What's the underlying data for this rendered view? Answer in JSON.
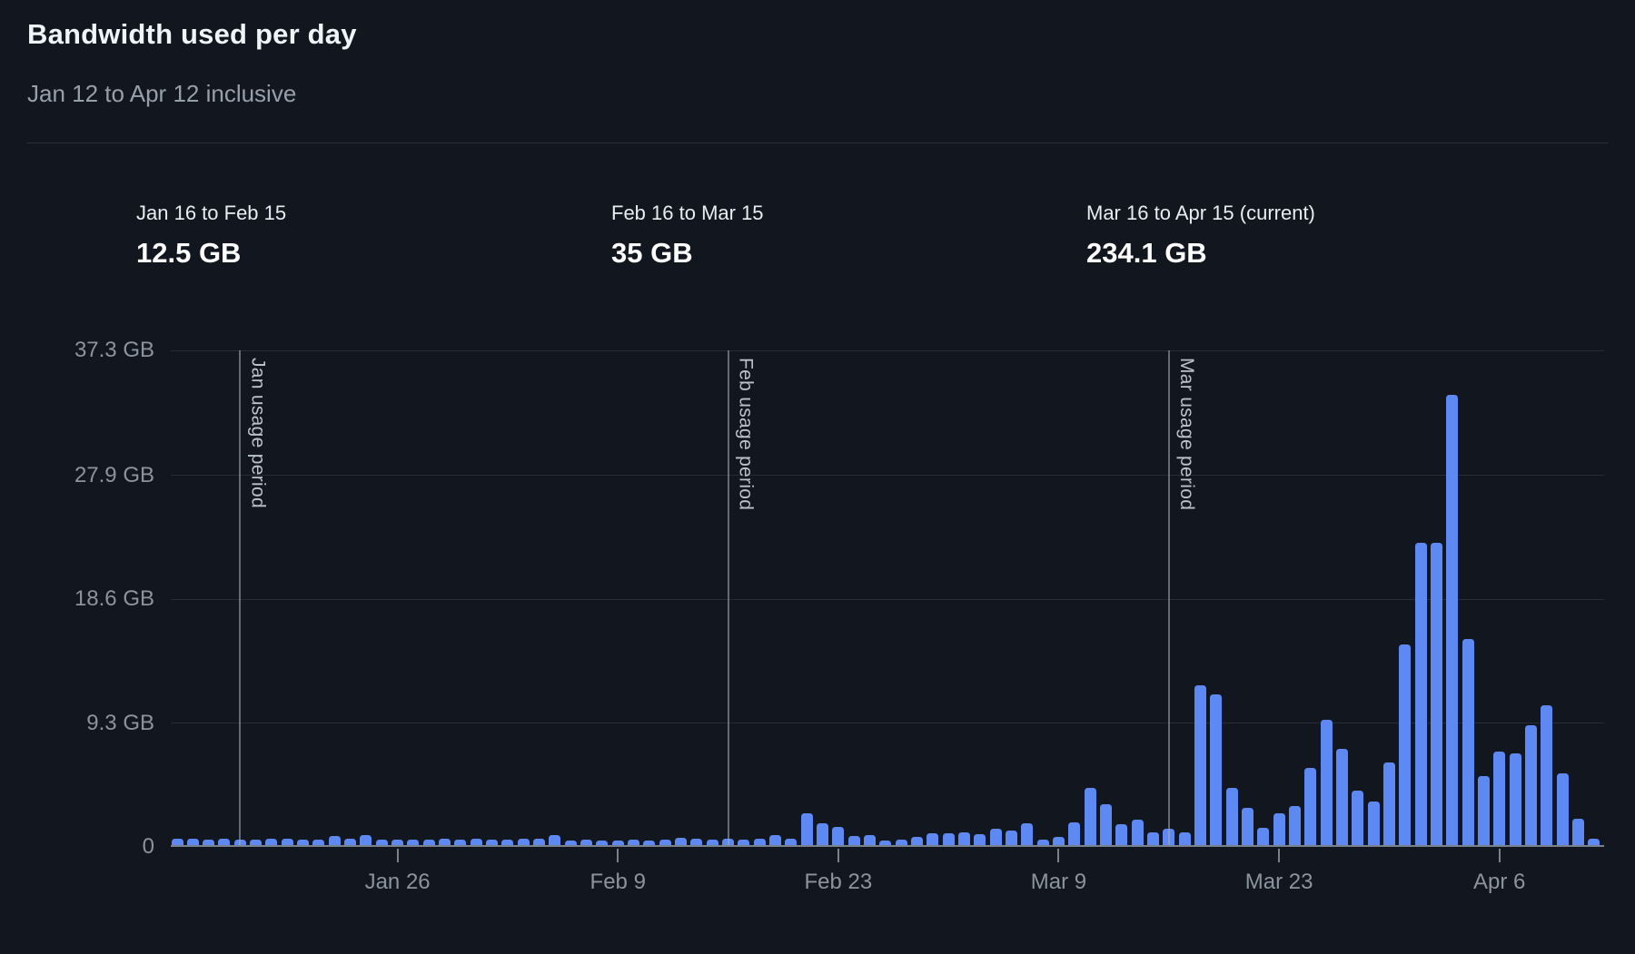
{
  "header": {
    "title": "Bandwidth used per day",
    "subtitle": "Jan 12 to Apr 12 inclusive"
  },
  "summary": [
    {
      "label": "Jan 16 to Feb 15",
      "value": "12.5 GB"
    },
    {
      "label": "Feb 16 to Mar 15",
      "value": "35 GB"
    },
    {
      "label": "Mar 16 to Apr 15 (current)",
      "value": "234.1 GB"
    }
  ],
  "colors": {
    "background": "#12171f",
    "bar": "#5e88f2",
    "grid": "#262d36",
    "axis_line": "#79828c",
    "tick_label": "#8b949e",
    "period_label": "#b9c1ca"
  },
  "chart_data": {
    "type": "bar",
    "title": "Bandwidth used per day",
    "xlabel": "",
    "ylabel": "",
    "unit": "GB",
    "ylim": [
      0,
      37.3
    ],
    "grid": true,
    "y_ticks": [
      {
        "label": "0",
        "value": 0
      },
      {
        "label": "9.3 GB",
        "value": 9.3
      },
      {
        "label": "18.6 GB",
        "value": 18.6
      },
      {
        "label": "27.9 GB",
        "value": 27.9
      },
      {
        "label": "37.3 GB",
        "value": 37.3
      }
    ],
    "x_ticks": [
      {
        "label": "Jan 26",
        "index": 14
      },
      {
        "label": "Feb 9",
        "index": 28
      },
      {
        "label": "Feb 23",
        "index": 42
      },
      {
        "label": "Mar 9",
        "index": 56
      },
      {
        "label": "Mar 23",
        "index": 70
      },
      {
        "label": "Apr 6",
        "index": 84
      }
    ],
    "period_markers": [
      {
        "label": "Jan usage period",
        "index": 4
      },
      {
        "label": "Feb usage period",
        "index": 35
      },
      {
        "label": "Mar usage period",
        "index": 63
      }
    ],
    "categories": [
      "Jan 12",
      "Jan 13",
      "Jan 14",
      "Jan 15",
      "Jan 16",
      "Jan 17",
      "Jan 18",
      "Jan 19",
      "Jan 20",
      "Jan 21",
      "Jan 22",
      "Jan 23",
      "Jan 24",
      "Jan 25",
      "Jan 26",
      "Jan 27",
      "Jan 28",
      "Jan 29",
      "Jan 30",
      "Jan 31",
      "Feb 1",
      "Feb 2",
      "Feb 3",
      "Feb 4",
      "Feb 5",
      "Feb 6",
      "Feb 7",
      "Feb 8",
      "Feb 9",
      "Feb 10",
      "Feb 11",
      "Feb 12",
      "Feb 13",
      "Feb 14",
      "Feb 15",
      "Feb 16",
      "Feb 17",
      "Feb 18",
      "Feb 19",
      "Feb 20",
      "Feb 21",
      "Feb 22",
      "Feb 23",
      "Feb 24",
      "Feb 25",
      "Feb 26",
      "Feb 27",
      "Feb 28",
      "Mar 1",
      "Mar 2",
      "Mar 3",
      "Mar 4",
      "Mar 5",
      "Mar 6",
      "Mar 7",
      "Mar 8",
      "Mar 9",
      "Mar 10",
      "Mar 11",
      "Mar 12",
      "Mar 13",
      "Mar 14",
      "Mar 15",
      "Mar 16",
      "Mar 17",
      "Mar 18",
      "Mar 19",
      "Mar 20",
      "Mar 21",
      "Mar 22",
      "Mar 23",
      "Mar 24",
      "Mar 25",
      "Mar 26",
      "Mar 27",
      "Mar 28",
      "Mar 29",
      "Mar 30",
      "Mar 31",
      "Apr 1",
      "Apr 2",
      "Apr 3",
      "Apr 4",
      "Apr 5",
      "Apr 6",
      "Apr 7",
      "Apr 8",
      "Apr 9",
      "Apr 10",
      "Apr 11",
      "Apr 12"
    ],
    "values": [
      0.5,
      0.45,
      0.43,
      0.45,
      0.43,
      0.43,
      0.45,
      0.45,
      0.43,
      0.41,
      0.66,
      0.45,
      0.73,
      0.39,
      0.41,
      0.41,
      0.43,
      0.45,
      0.43,
      0.45,
      0.41,
      0.43,
      0.45,
      0.45,
      0.76,
      0.34,
      0.39,
      0.36,
      0.36,
      0.39,
      0.36,
      0.41,
      0.57,
      0.5,
      0.4,
      0.45,
      0.4,
      0.5,
      0.75,
      0.47,
      2.4,
      1.65,
      1.35,
      0.65,
      0.75,
      0.35,
      0.42,
      0.62,
      0.9,
      0.9,
      0.97,
      0.85,
      1.24,
      1.08,
      1.62,
      0.4,
      0.63,
      1.7,
      4.3,
      3.1,
      1.6,
      1.9,
      0.95,
      1.2,
      0.95,
      12.0,
      11.3,
      4.3,
      2.8,
      1.3,
      2.4,
      2.9,
      5.8,
      9.4,
      7.2,
      4.1,
      3.3,
      6.2,
      15.1,
      22.7,
      22.7,
      33.8,
      15.5,
      5.2,
      7.0,
      6.9,
      9.0,
      10.5,
      5.4,
      2.0,
      0.5
    ]
  }
}
